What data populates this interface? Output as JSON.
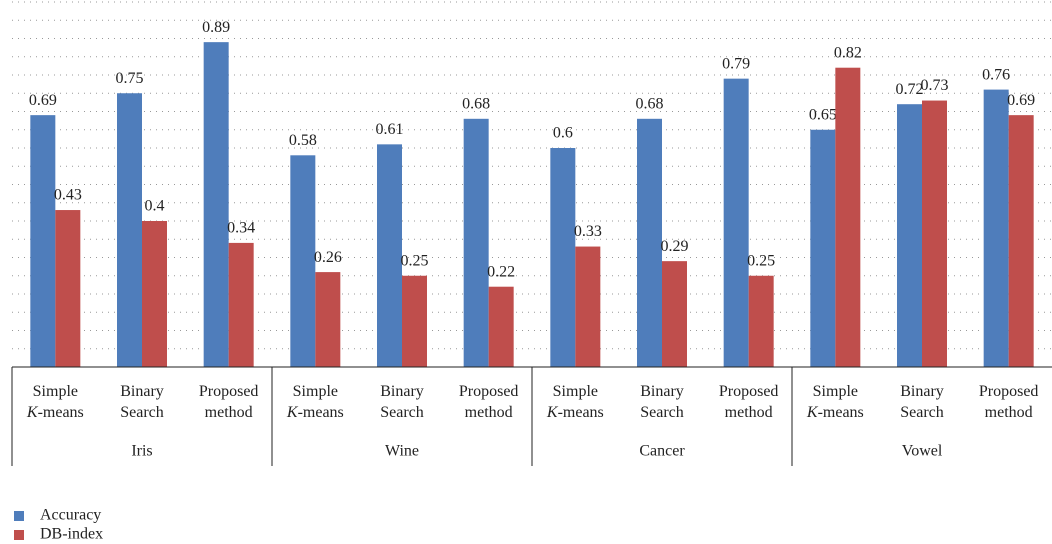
{
  "chart_data": {
    "type": "bar",
    "groups": [
      "Iris",
      "Wine",
      "Cancer",
      "Vowel"
    ],
    "categories": [
      "Simple K-means",
      "Binary Search",
      "Proposed method",
      "Simple K-means",
      "Binary Search",
      "Proposed method",
      "Simple K-means",
      "Binary Search",
      "Proposed method",
      "Simple K-means",
      "Binary Search",
      "Proposed method"
    ],
    "series": [
      {
        "name": "Accuracy",
        "color": "#4f7dbb",
        "values": [
          0.69,
          0.75,
          0.89,
          0.58,
          0.61,
          0.68,
          0.6,
          0.68,
          0.79,
          0.65,
          0.72,
          0.76
        ]
      },
      {
        "name": "DB-index",
        "color": "#bf4e4c",
        "values": [
          0.43,
          0.4,
          0.34,
          0.26,
          0.25,
          0.22,
          0.33,
          0.29,
          0.25,
          0.82,
          0.73,
          0.69
        ]
      }
    ],
    "ylim": [
      0,
      1
    ],
    "yticks": [
      0,
      0.05,
      0.1,
      0.15,
      0.2,
      0.25,
      0.3,
      0.35,
      0.4,
      0.45,
      0.5,
      0.55,
      0.6,
      0.65,
      0.7,
      0.75,
      0.8,
      0.85,
      0.9,
      0.95,
      1
    ],
    "grid": true
  }
}
